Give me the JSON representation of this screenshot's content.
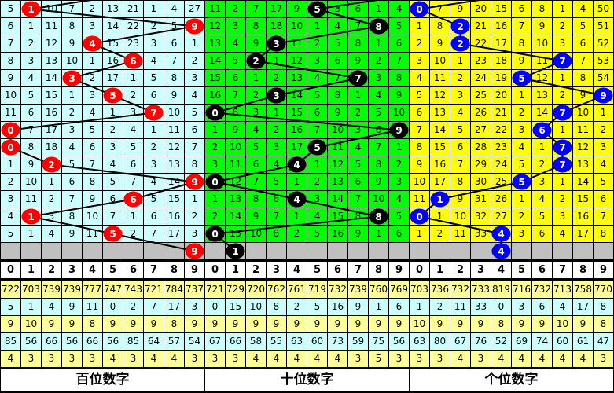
{
  "chart_data": {
    "type": "table",
    "header_digits": [
      "0",
      "1",
      "2",
      "3",
      "4",
      "5",
      "6",
      "7",
      "8",
      "9"
    ],
    "panels": [
      {
        "title": "百位数字",
        "bg": "#ccffff",
        "ball_color": "#ff0000",
        "draws": [
          1,
          9,
          4,
          6,
          3,
          5,
          7,
          0,
          0,
          2,
          9,
          6,
          1,
          5,
          9
        ],
        "rows": [
          [
            5,
            null,
            10,
            7,
            2,
            13,
            21,
            1,
            4,
            27
          ],
          [
            6,
            1,
            11,
            8,
            3,
            14,
            22,
            2,
            5,
            null
          ],
          [
            7,
            2,
            12,
            9,
            null,
            15,
            23,
            3,
            6,
            1
          ],
          [
            8,
            3,
            13,
            10,
            1,
            16,
            null,
            4,
            7,
            2
          ],
          [
            9,
            4,
            14,
            null,
            2,
            17,
            1,
            5,
            8,
            3
          ],
          [
            10,
            5,
            15,
            1,
            3,
            null,
            2,
            6,
            9,
            4
          ],
          [
            11,
            6,
            16,
            2,
            4,
            1,
            3,
            null,
            10,
            5
          ],
          [
            null,
            7,
            17,
            3,
            5,
            2,
            4,
            1,
            11,
            6
          ],
          [
            null,
            8,
            18,
            4,
            6,
            3,
            5,
            2,
            12,
            7
          ],
          [
            1,
            9,
            null,
            5,
            7,
            4,
            6,
            3,
            13,
            8
          ],
          [
            2,
            10,
            1,
            6,
            8,
            5,
            7,
            4,
            14,
            null
          ],
          [
            3,
            11,
            2,
            7,
            9,
            6,
            null,
            5,
            15,
            1
          ],
          [
            4,
            null,
            3,
            8,
            10,
            7,
            1,
            6,
            16,
            2
          ],
          [
            5,
            1,
            4,
            9,
            11,
            null,
            2,
            7,
            17,
            3
          ]
        ],
        "stats": [
          [
            "722",
            "703",
            "739",
            "739",
            "777",
            "747",
            "743",
            "721",
            "784",
            "737"
          ],
          [
            "5",
            "1",
            "4",
            "9",
            "11",
            "0",
            "2",
            "7",
            "17",
            "3"
          ],
          [
            "9",
            "10",
            "9",
            "9",
            "8",
            "9",
            "9",
            "9",
            "8",
            "9"
          ],
          [
            "85",
            "56",
            "66",
            "56",
            "66",
            "56",
            "85",
            "64",
            "57",
            "54"
          ],
          [
            "4",
            "3",
            "3",
            "3",
            "3",
            "4",
            "3",
            "4",
            "4",
            "3"
          ]
        ]
      },
      {
        "title": "十位数字",
        "bg": "#00ff00",
        "ball_color": "#000000",
        "draws": [
          5,
          8,
          3,
          2,
          7,
          3,
          0,
          9,
          5,
          4,
          0,
          4,
          8,
          0,
          1
        ],
        "rows": [
          [
            11,
            2,
            7,
            17,
            9,
            null,
            3,
            6,
            1,
            4
          ],
          [
            12,
            3,
            8,
            18,
            10,
            1,
            4,
            7,
            null,
            5
          ],
          [
            13,
            4,
            9,
            null,
            11,
            2,
            5,
            8,
            1,
            6
          ],
          [
            14,
            5,
            null,
            1,
            12,
            3,
            6,
            9,
            2,
            7
          ],
          [
            15,
            6,
            1,
            2,
            13,
            4,
            7,
            null,
            3,
            8
          ],
          [
            16,
            7,
            2,
            null,
            14,
            5,
            8,
            1,
            4,
            9
          ],
          [
            null,
            8,
            3,
            1,
            15,
            6,
            9,
            2,
            5,
            10
          ],
          [
            1,
            9,
            4,
            2,
            16,
            7,
            10,
            3,
            6,
            null
          ],
          [
            2,
            10,
            5,
            3,
            17,
            null,
            11,
            4,
            7,
            1
          ],
          [
            3,
            11,
            6,
            4,
            null,
            1,
            12,
            5,
            8,
            2
          ],
          [
            null,
            12,
            7,
            5,
            1,
            2,
            13,
            6,
            9,
            3
          ],
          [
            1,
            13,
            8,
            6,
            null,
            3,
            14,
            7,
            10,
            4
          ],
          [
            2,
            14,
            9,
            7,
            1,
            4,
            15,
            8,
            null,
            5
          ],
          [
            null,
            15,
            10,
            8,
            2,
            5,
            16,
            9,
            1,
            6
          ]
        ],
        "stats": [
          [
            "721",
            "729",
            "720",
            "762",
            "761",
            "719",
            "732",
            "739",
            "760",
            "769"
          ],
          [
            "0",
            "15",
            "10",
            "8",
            "2",
            "5",
            "16",
            "9",
            "1",
            "6"
          ],
          [
            "9",
            "9",
            "9",
            "9",
            "9",
            "9",
            "9",
            "9",
            "9",
            "9"
          ],
          [
            "67",
            "66",
            "58",
            "55",
            "63",
            "60",
            "73",
            "59",
            "75",
            "56"
          ],
          [
            "3",
            "3",
            "4",
            "4",
            "4",
            "4",
            "4",
            "3",
            "5",
            "3"
          ]
        ]
      },
      {
        "title": "个位数字",
        "bg": "#ffff00",
        "ball_color": "#0000ff",
        "draws": [
          0,
          2,
          2,
          7,
          5,
          9,
          7,
          6,
          7,
          7,
          5,
          1,
          0,
          4,
          4
        ],
        "rows": [
          [
            null,
            7,
            9,
            20,
            15,
            6,
            8,
            1,
            4,
            50
          ],
          [
            1,
            8,
            null,
            21,
            16,
            7,
            9,
            2,
            5,
            51
          ],
          [
            2,
            9,
            null,
            22,
            17,
            8,
            10,
            3,
            6,
            52
          ],
          [
            3,
            10,
            1,
            23,
            18,
            9,
            11,
            null,
            7,
            53
          ],
          [
            4,
            11,
            2,
            24,
            19,
            null,
            12,
            1,
            8,
            54
          ],
          [
            5,
            12,
            3,
            25,
            20,
            1,
            13,
            2,
            9,
            null
          ],
          [
            6,
            13,
            4,
            26,
            21,
            2,
            14,
            null,
            10,
            1
          ],
          [
            7,
            14,
            5,
            27,
            22,
            3,
            null,
            1,
            11,
            2
          ],
          [
            8,
            15,
            6,
            28,
            23,
            4,
            1,
            null,
            12,
            3
          ],
          [
            9,
            16,
            7,
            29,
            24,
            5,
            2,
            null,
            13,
            4
          ],
          [
            10,
            17,
            8,
            30,
            25,
            null,
            3,
            1,
            14,
            5
          ],
          [
            11,
            null,
            9,
            31,
            26,
            1,
            4,
            2,
            15,
            6
          ],
          [
            null,
            1,
            10,
            32,
            27,
            2,
            5,
            3,
            16,
            7
          ],
          [
            1,
            2,
            11,
            33,
            null,
            3,
            6,
            4,
            17,
            8
          ]
        ],
        "stats": [
          [
            "703",
            "736",
            "732",
            "733",
            "819",
            "716",
            "732",
            "713",
            "758",
            "770"
          ],
          [
            "1",
            "2",
            "11",
            "33",
            "0",
            "3",
            "6",
            "4",
            "17",
            "8"
          ],
          [
            "10",
            "9",
            "9",
            "9",
            "8",
            "9",
            "9",
            "10",
            "9",
            "8"
          ],
          [
            "63",
            "80",
            "67",
            "76",
            "52",
            "69",
            "74",
            "60",
            "61",
            "47"
          ],
          [
            "3",
            "3",
            "4",
            "3",
            "4",
            "4",
            "4",
            "4",
            "4",
            "3"
          ]
        ]
      }
    ],
    "colors": {
      "stat_yellow": "#ffff99",
      "stat_blue": "#ccffff",
      "pending_row": "#c0c0c0"
    }
  }
}
